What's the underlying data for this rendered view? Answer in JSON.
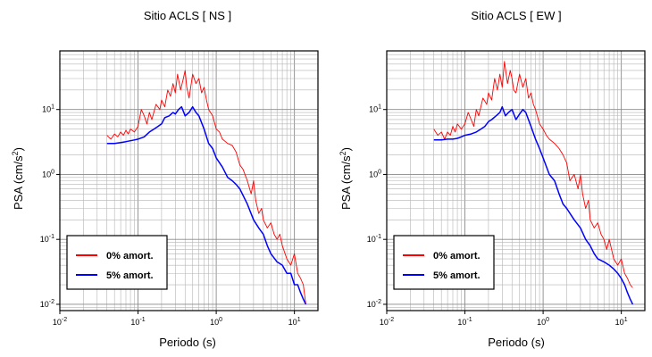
{
  "chart_data": [
    {
      "type": "line",
      "title": "Sitio ACLS [ NS ]",
      "xlabel": "Periodo (s)",
      "ylabel": "PSA (cm/s2)",
      "xscale": "log",
      "yscale": "log",
      "xlim": [
        0.01,
        20
      ],
      "ylim": [
        0.008,
        80
      ],
      "xticks": [
        0.01,
        0.1,
        1,
        10
      ],
      "yticks": [
        0.01,
        0.1,
        1,
        10
      ],
      "grid": true,
      "legend_position": "bottom-left",
      "series": [
        {
          "name": "0% amort.",
          "color": "#ff0000",
          "x": [
            0.04,
            0.045,
            0.05,
            0.055,
            0.06,
            0.065,
            0.07,
            0.075,
            0.08,
            0.09,
            0.1,
            0.11,
            0.12,
            0.13,
            0.14,
            0.15,
            0.17,
            0.19,
            0.2,
            0.22,
            0.24,
            0.26,
            0.28,
            0.3,
            0.32,
            0.35,
            0.38,
            0.4,
            0.42,
            0.45,
            0.5,
            0.55,
            0.6,
            0.65,
            0.7,
            0.75,
            0.8,
            0.9,
            1.0,
            1.1,
            1.2,
            1.4,
            1.6,
            1.8,
            2.0,
            2.2,
            2.5,
            2.8,
            3.0,
            3.2,
            3.5,
            3.8,
            4.0,
            4.5,
            5.0,
            5.5,
            6.0,
            6.5,
            7.0,
            8.0,
            9.0,
            10.0,
            11.0,
            12.0,
            13.0,
            14.0
          ],
          "y": [
            4.0,
            3.5,
            4.2,
            3.8,
            4.5,
            4.0,
            4.8,
            4.2,
            5.0,
            4.5,
            5.5,
            10.0,
            8.0,
            6.0,
            9.0,
            7.0,
            12.0,
            10.0,
            14.0,
            11.0,
            20.0,
            16.0,
            25.0,
            18.0,
            35.0,
            20.0,
            30.0,
            40.0,
            22.0,
            15.0,
            35.0,
            25.0,
            30.0,
            18.0,
            22.0,
            14.0,
            10.0,
            8.0,
            5.0,
            4.5,
            3.5,
            3.0,
            2.8,
            2.2,
            1.4,
            1.2,
            0.8,
            0.5,
            0.8,
            0.4,
            0.25,
            0.3,
            0.2,
            0.15,
            0.18,
            0.12,
            0.1,
            0.12,
            0.08,
            0.05,
            0.04,
            0.06,
            0.03,
            0.025,
            0.02,
            0.01
          ]
        },
        {
          "name": "5% amort.",
          "color": "#0000ff",
          "x": [
            0.04,
            0.05,
            0.06,
            0.07,
            0.08,
            0.09,
            0.1,
            0.12,
            0.14,
            0.16,
            0.18,
            0.2,
            0.22,
            0.25,
            0.28,
            0.3,
            0.33,
            0.36,
            0.4,
            0.45,
            0.5,
            0.55,
            0.6,
            0.7,
            0.8,
            0.9,
            1.0,
            1.2,
            1.4,
            1.6,
            1.8,
            2.0,
            2.5,
            3.0,
            3.5,
            4.0,
            4.5,
            5.0,
            6.0,
            7.0,
            8.0,
            9.0,
            10.0,
            11.0,
            12.0,
            13.0,
            14.0
          ],
          "y": [
            3.0,
            3.0,
            3.1,
            3.2,
            3.3,
            3.4,
            3.5,
            3.8,
            4.5,
            5.0,
            5.5,
            6.0,
            7.5,
            8.0,
            9.0,
            8.5,
            10.0,
            11.0,
            8.0,
            9.0,
            11.0,
            9.0,
            8.0,
            5.0,
            3.0,
            2.5,
            1.8,
            1.3,
            0.9,
            0.8,
            0.7,
            0.6,
            0.35,
            0.2,
            0.15,
            0.12,
            0.08,
            0.06,
            0.045,
            0.04,
            0.03,
            0.03,
            0.02,
            0.02,
            0.015,
            0.012,
            0.01
          ]
        }
      ]
    },
    {
      "type": "line",
      "title": "Sitio ACLS [ EW ]",
      "xlabel": "Periodo (s)",
      "ylabel": "PSA (cm/s2)",
      "xscale": "log",
      "yscale": "log",
      "xlim": [
        0.01,
        20
      ],
      "ylim": [
        0.008,
        80
      ],
      "xticks": [
        0.01,
        0.1,
        1,
        10
      ],
      "yticks": [
        0.01,
        0.1,
        1,
        10
      ],
      "grid": true,
      "legend_position": "bottom-left",
      "series": [
        {
          "name": "0% amort.",
          "color": "#ff0000",
          "x": [
            0.04,
            0.045,
            0.05,
            0.055,
            0.06,
            0.065,
            0.07,
            0.075,
            0.08,
            0.09,
            0.1,
            0.11,
            0.12,
            0.13,
            0.14,
            0.15,
            0.17,
            0.19,
            0.2,
            0.22,
            0.24,
            0.26,
            0.28,
            0.3,
            0.32,
            0.35,
            0.38,
            0.4,
            0.42,
            0.45,
            0.5,
            0.55,
            0.6,
            0.65,
            0.7,
            0.75,
            0.8,
            0.9,
            1.0,
            1.1,
            1.2,
            1.4,
            1.6,
            1.8,
            2.0,
            2.2,
            2.5,
            2.8,
            3.0,
            3.2,
            3.5,
            3.8,
            4.0,
            4.5,
            5.0,
            5.5,
            6.0,
            6.5,
            7.0,
            8.0,
            9.0,
            10.0,
            11.0,
            12.0,
            13.0,
            14.0
          ],
          "y": [
            5.0,
            4.0,
            4.5,
            3.5,
            4.5,
            4.0,
            5.5,
            4.5,
            6.0,
            5.0,
            6.0,
            9.0,
            7.0,
            5.5,
            10.0,
            8.0,
            15.0,
            12.0,
            18.0,
            14.0,
            30.0,
            20.0,
            35.0,
            22.0,
            55.0,
            25.0,
            40.0,
            30.0,
            20.0,
            18.0,
            35.0,
            22.0,
            30.0,
            15.0,
            18.0,
            12.0,
            10.0,
            6.0,
            5.0,
            4.0,
            3.5,
            3.0,
            2.5,
            2.0,
            1.5,
            0.8,
            1.0,
            0.6,
            1.0,
            0.5,
            0.3,
            0.4,
            0.2,
            0.15,
            0.18,
            0.12,
            0.1,
            0.07,
            0.1,
            0.05,
            0.04,
            0.05,
            0.03,
            0.025,
            0.02,
            0.018
          ]
        },
        {
          "name": "5% amort.",
          "color": "#0000ff",
          "x": [
            0.04,
            0.05,
            0.06,
            0.07,
            0.08,
            0.09,
            0.1,
            0.12,
            0.14,
            0.16,
            0.18,
            0.2,
            0.22,
            0.25,
            0.28,
            0.3,
            0.33,
            0.36,
            0.4,
            0.45,
            0.5,
            0.55,
            0.6,
            0.7,
            0.8,
            0.9,
            1.0,
            1.2,
            1.4,
            1.6,
            1.8,
            2.0,
            2.5,
            3.0,
            3.5,
            4.0,
            4.5,
            5.0,
            6.0,
            7.0,
            8.0,
            9.0,
            10.0,
            11.0,
            12.0,
            13.0,
            14.0
          ],
          "y": [
            3.4,
            3.4,
            3.5,
            3.5,
            3.6,
            3.8,
            4.0,
            4.2,
            4.5,
            5.0,
            5.5,
            6.5,
            7.0,
            8.0,
            9.0,
            11.0,
            8.0,
            9.0,
            10.0,
            7.0,
            8.5,
            10.0,
            9.0,
            5.5,
            3.5,
            2.5,
            1.8,
            1.0,
            0.8,
            0.5,
            0.35,
            0.3,
            0.2,
            0.15,
            0.1,
            0.08,
            0.06,
            0.05,
            0.045,
            0.04,
            0.035,
            0.03,
            0.025,
            0.02,
            0.015,
            0.012,
            0.01
          ]
        }
      ]
    }
  ]
}
